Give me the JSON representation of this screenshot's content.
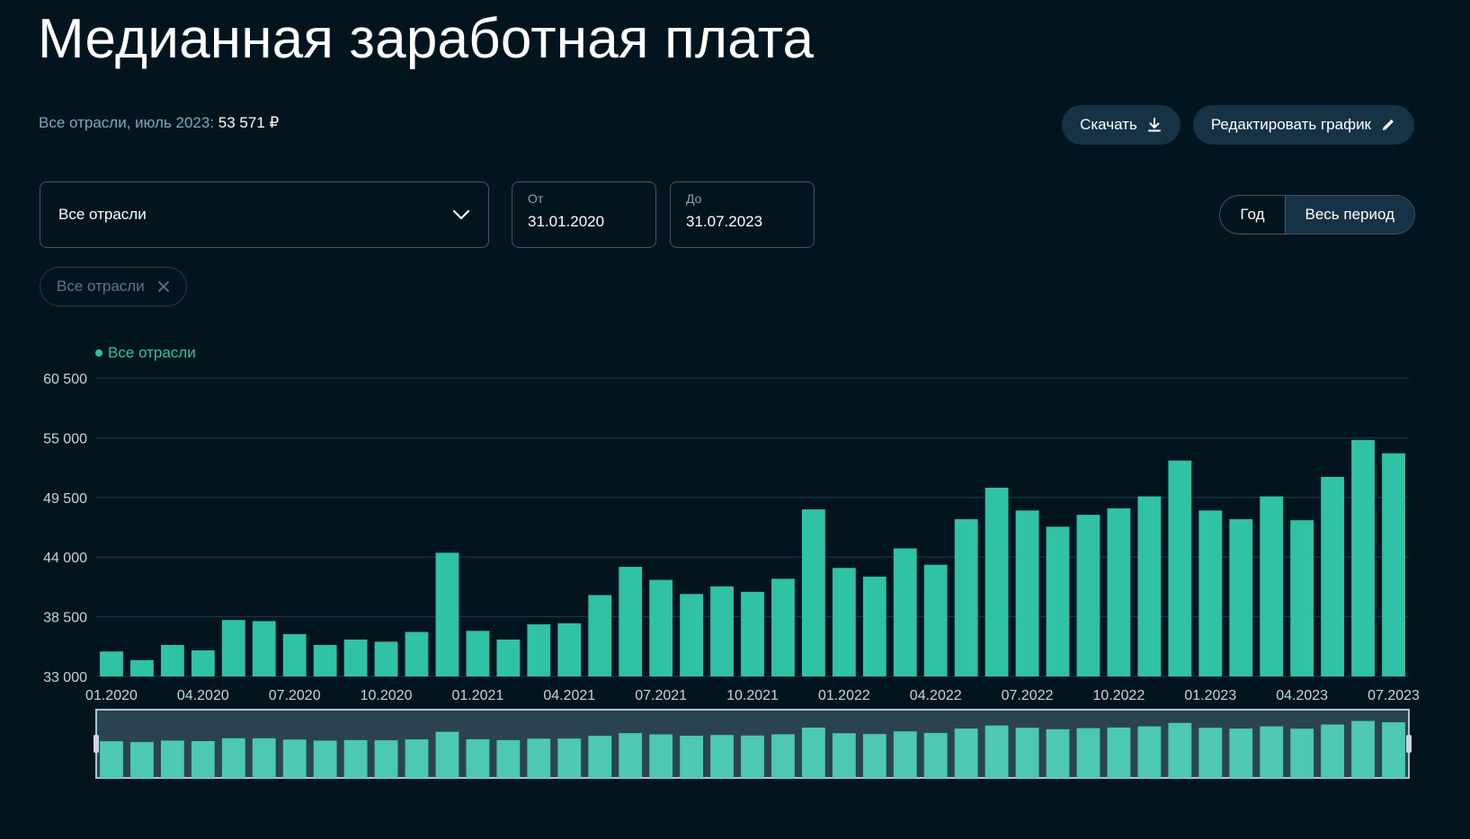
{
  "page": {
    "title": "Медианная заработная плата",
    "subtitle_prefix": "Все отрасли, июль 2023: ",
    "subtitle_value": "53 571 ₽"
  },
  "toolbar": {
    "download_label": "Скачать",
    "edit_label": "Редактировать график"
  },
  "filters": {
    "industry_select": "Все отрасли",
    "from_label": "От",
    "from_value": "31.01.2020",
    "to_label": "До",
    "to_value": "31.07.2023",
    "period_year": "Год",
    "period_all": "Весь период",
    "active_period": "Весь период",
    "chip_label": "Все отрасли"
  },
  "colors": {
    "background": "#02151f",
    "bar": "#30c2a5",
    "bar_navigator": "#4cc9b0",
    "accent_button": "#163345"
  },
  "chart_data": {
    "type": "bar",
    "legend": [
      "Все отрасли"
    ],
    "legend_position": "top-left",
    "grid": true,
    "ylim": [
      33000,
      60500
    ],
    "yticks": [
      "33 000",
      "38 500",
      "44 000",
      "49 500",
      "55 000",
      "60 500"
    ],
    "ytick_values": [
      33000,
      38500,
      44000,
      49500,
      55000,
      60500
    ],
    "xticks": [
      "01.2020",
      "04.2020",
      "07.2020",
      "10.2020",
      "01.2021",
      "04.2021",
      "07.2021",
      "10.2021",
      "01.2022",
      "04.2022",
      "07.2022",
      "10.2022",
      "01.2023",
      "04.2023",
      "07.2023"
    ],
    "categories": [
      "01.2020",
      "02.2020",
      "03.2020",
      "04.2020",
      "05.2020",
      "06.2020",
      "07.2020",
      "08.2020",
      "09.2020",
      "10.2020",
      "11.2020",
      "12.2020",
      "01.2021",
      "02.2021",
      "03.2021",
      "04.2021",
      "05.2021",
      "06.2021",
      "07.2021",
      "08.2021",
      "09.2021",
      "10.2021",
      "11.2021",
      "12.2021",
      "01.2022",
      "02.2022",
      "03.2022",
      "04.2022",
      "05.2022",
      "06.2022",
      "07.2022",
      "08.2022",
      "09.2022",
      "10.2022",
      "11.2022",
      "12.2022",
      "01.2023",
      "02.2023",
      "03.2023",
      "04.2023",
      "05.2023",
      "06.2023",
      "07.2023"
    ],
    "series": [
      {
        "name": "Все отрасли",
        "values": [
          35300,
          34500,
          35900,
          35400,
          38200,
          38100,
          36900,
          35900,
          36400,
          36200,
          37100,
          44400,
          37200,
          36400,
          37800,
          37900,
          40500,
          43100,
          41900,
          40600,
          41300,
          40800,
          42000,
          48400,
          43000,
          42200,
          44800,
          43300,
          47500,
          50400,
          48300,
          46800,
          47900,
          48500,
          49600,
          52900,
          48300,
          47500,
          49600,
          47400,
          51400,
          54800,
          53571
        ]
      }
    ]
  }
}
